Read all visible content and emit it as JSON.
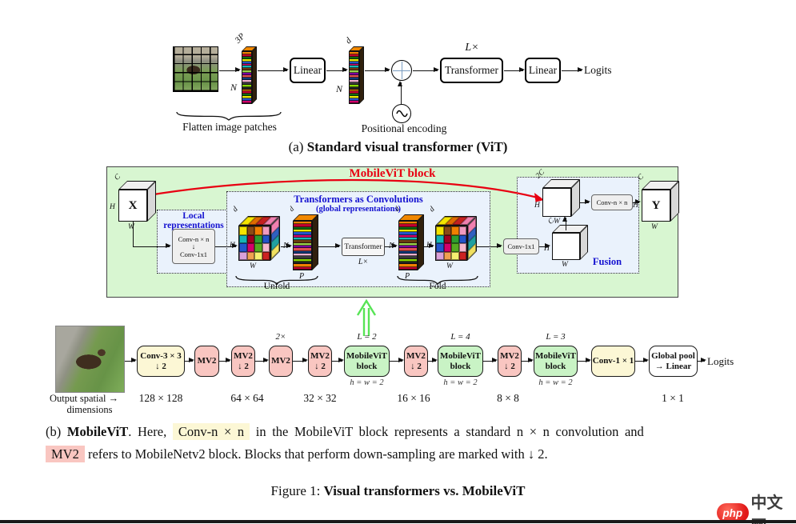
{
  "vit": {
    "bar1_top": "3P",
    "bar1_side": "N",
    "bar2_top": "d",
    "bar2_side": "N",
    "linear1": "Linear",
    "transformer": "Transformer",
    "transformer_mult": "L×",
    "linear2": "Linear",
    "logits": "Logits",
    "flatten_label": "Flatten image patches",
    "positional_label": "Positional encoding",
    "caption_prefix": "(a) ",
    "caption_title": "Standard visual transformer (ViT)"
  },
  "block": {
    "title": "MobileViT block",
    "input": "X",
    "output": "Y",
    "dim_c": "C",
    "dim_2c": "2C",
    "dim_h": "H",
    "dim_w": "W",
    "dim_d": "d",
    "dim_n": "N",
    "dim_p": "P",
    "local_title_1": "Local",
    "local_title_2": "representations",
    "local_conv_top": "Conv-n × n",
    "local_conv_arrow": "↓",
    "local_conv_bottom": "Conv-1x1",
    "global_title": "Transformers as Convolutions",
    "global_subtitle": "(global representations)",
    "transformer": "Transformer",
    "transformer_mult": "L×",
    "unfold": "Unfold",
    "fold": "Fold",
    "fusion": "Fusion",
    "fusion_conv1": "Conv-1x1",
    "fusion_conv2": "Conv-n × n"
  },
  "pipeline": {
    "blocks": [
      {
        "line1": "Conv-3 × 3",
        "line2": "↓ 2",
        "color": "yellow"
      },
      {
        "line1": "MV2",
        "color": "pink"
      },
      {
        "line1": "MV2",
        "line2": "↓ 2",
        "color": "pink"
      },
      {
        "line1": "MV2",
        "top": "2×",
        "color": "pink"
      },
      {
        "line1": "MV2",
        "line2": "↓ 2",
        "color": "pink"
      },
      {
        "line1": "MobileViT",
        "line2": "block",
        "top": "L = 2",
        "bottom": "h = w = 2",
        "color": "green"
      },
      {
        "line1": "MV2",
        "line2": "↓ 2",
        "color": "pink"
      },
      {
        "line1": "MobileViT",
        "line2": "block",
        "top": "L = 4",
        "bottom": "h = w = 2",
        "color": "green"
      },
      {
        "line1": "MV2",
        "line2": "↓ 2",
        "color": "pink"
      },
      {
        "line1": "MobileViT",
        "line2": "block",
        "top": "L = 3",
        "bottom": "h = w = 2",
        "color": "green"
      },
      {
        "line1": "Conv-1 × 1",
        "color": "yellow"
      },
      {
        "line1": "Global pool",
        "line2": "→ Linear",
        "color": "white"
      }
    ],
    "logits": "Logits",
    "output_label_1": "Output spatial →",
    "output_label_2": "dimensions",
    "dims": [
      "128 × 128",
      "64 × 64",
      "32 × 32",
      "16 × 16",
      "8 × 8",
      "1 × 1"
    ]
  },
  "captions": {
    "b_prefix": "(b) ",
    "b_bold": "MobileViT",
    "b_after_bold": ". Here, ",
    "b_hl_yellow": "Conv-n × n",
    "b_line1_rest": " in the MobileViT block represents a standard n × n convolution and",
    "b_hl_pink": "MV2",
    "b_line2_rest": " refers to MobileNetv2 block. Blocks that perform down-sampling are marked with ↓ 2.",
    "figure_prefix": "Figure 1: ",
    "figure_bold": "Visual transformers vs. MobileViT"
  },
  "watermark": {
    "badge": "php",
    "site": "中文网"
  },
  "colors": {
    "block_bg": "#d8f6d1",
    "panel_bg": "#eaf2fc",
    "title_red": "#e80012",
    "label_blue": "#1512d0",
    "box_yellow": "#fcf7d5",
    "box_pink": "#f9c6c1",
    "box_green": "#c9f3c5",
    "arrow_green": "#57e455",
    "stack_top": "#f08800",
    "stripe_palette": [
      "#f08000",
      "#c00030",
      "#106b10",
      "#e8e800",
      "#2353c9",
      "#d4006a",
      "#15b5b5",
      "#6a3a10",
      "#9ad14b",
      "#7a00a0",
      "#e05050",
      "#103a7a",
      "#f0b0d0",
      "#3a3a3a",
      "#88d800",
      "#222222"
    ],
    "cube_colors": [
      "#f5e400",
      "#8a4a16",
      "#f08000",
      "#f09ac0",
      "#15b5b5",
      "#a00020",
      "#2f9e2f",
      "#2353c9",
      "#2255cc",
      "#d4006a",
      "#55aa22",
      "#f5b8d0",
      "#d9a0d9",
      "#f0a050",
      "#f5ef70",
      "#cc2222"
    ],
    "cube_top_colors": [
      "#f5e400",
      "#e06a00",
      "#c42020",
      "#f080b0"
    ],
    "cube_side_colors": [
      "#f080b0",
      "#3060c0",
      "#20a0a0",
      "#f0e060"
    ]
  }
}
